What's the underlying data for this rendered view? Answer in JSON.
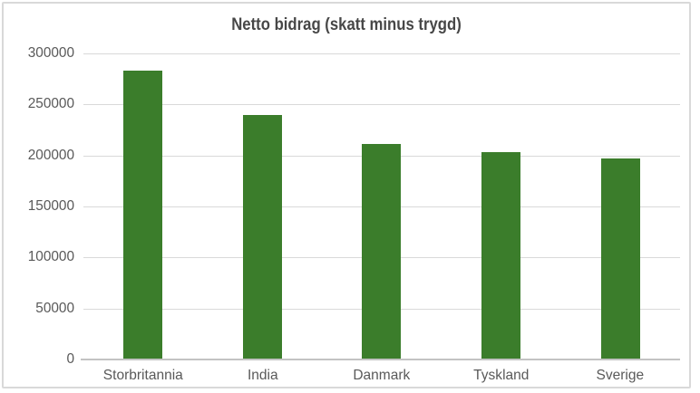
{
  "chart_data": {
    "type": "bar",
    "title": "Netto bidrag (skatt minus trygd)",
    "categories": [
      "Storbritannia",
      "India",
      "Danmark",
      "Tyskland",
      "Sverige"
    ],
    "values": [
      283000,
      240000,
      211000,
      203000,
      197000
    ],
    "xlabel": "",
    "ylabel": "",
    "ylim": [
      0,
      300000
    ],
    "yticks": [
      0,
      50000,
      100000,
      150000,
      200000,
      250000,
      300000
    ],
    "ytick_labels": [
      "0",
      "50000",
      "100000",
      "150000",
      "200000",
      "250000",
      "300000"
    ],
    "grid": true,
    "legend": "none",
    "bar_color": "#3b7d2b",
    "gridline_color": "#d9d9d9",
    "axis_line_color": "#c3c3c3",
    "tick_label_color": "#595959",
    "title_color": "#474747",
    "background_color": "#ffffff",
    "border_color": "#d9d9d9"
  }
}
